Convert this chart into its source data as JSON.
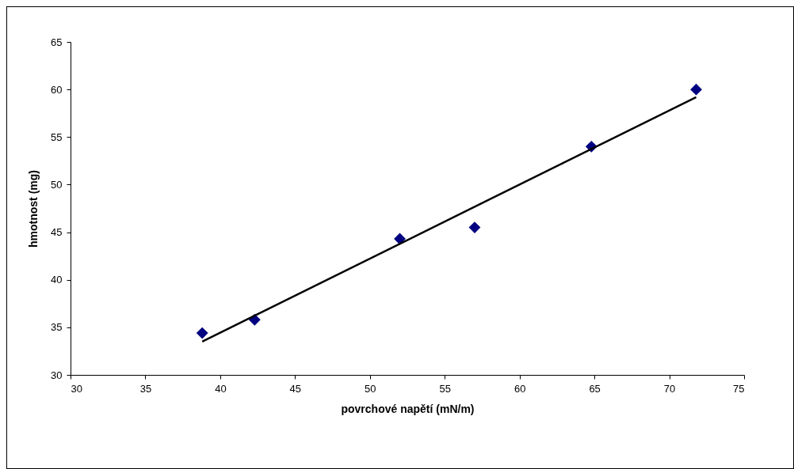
{
  "chart_data": {
    "type": "scatter",
    "xlabel": "povrchové napětí (mN/m)",
    "ylabel": "hmotnost (mg)",
    "x": [
      38.8,
      42.3,
      52.0,
      57.0,
      64.8,
      71.8
    ],
    "series": [
      {
        "color": "#000080",
        "marker": "diamond",
        "values": [
          34.4,
          35.8,
          44.3,
          45.5,
          54.0,
          60.0
        ]
      },
      {
        "type": "line",
        "color": "#000000",
        "marker": "none",
        "line_style": "solid",
        "x": [
          38.8,
          71.8
        ],
        "values": [
          33.5,
          59.2
        ]
      }
    ],
    "xlim": [
      30,
      75
    ],
    "xticks": [
      30,
      35,
      40,
      45,
      50,
      55,
      60,
      65,
      70,
      75
    ],
    "ylim": [
      30,
      65
    ],
    "yticks": [
      30,
      35,
      40,
      45,
      50,
      55,
      60,
      65
    ],
    "grid": false
  }
}
